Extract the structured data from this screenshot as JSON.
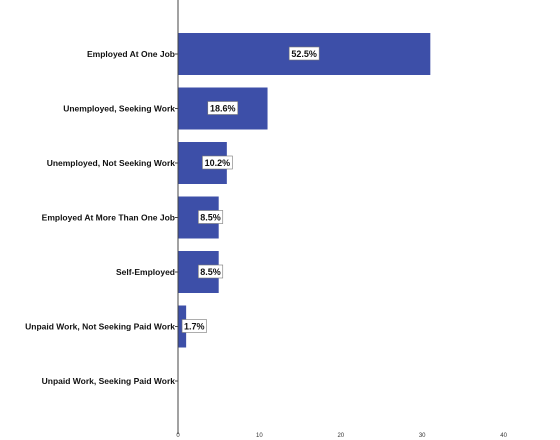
{
  "chart_data": {
    "type": "bar",
    "orientation": "horizontal",
    "categories": [
      "Employed At One Job",
      "Unemployed, Seeking Work",
      "Unemployed, Not Seeking Work",
      "Employed At More Than One Job",
      "Self-Employed",
      "Unpaid Work, Not Seeking Paid Work",
      "Unpaid Work, Seeking Paid Work"
    ],
    "values": [
      31,
      11,
      6,
      5,
      5,
      1,
      0
    ],
    "data_labels": [
      "52.5%",
      "18.6%",
      "10.2%",
      "8.5%",
      "8.5%",
      "1.7%",
      ""
    ],
    "x_ticks": [
      0,
      10,
      20,
      30,
      40
    ],
    "tick_labels": [
      "0",
      "10",
      "20",
      "30",
      "40"
    ],
    "xlim": [
      0,
      43
    ],
    "grid": false,
    "bar_color": "#3d4fa8",
    "label_box_color": "#ffffff"
  }
}
